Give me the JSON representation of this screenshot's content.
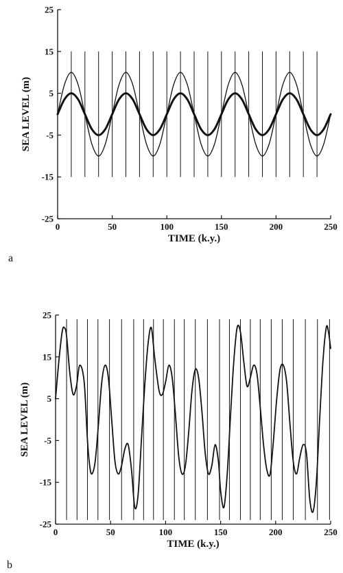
{
  "chart_data": [
    {
      "type": "line",
      "panel_label": "a",
      "xlabel": "TIME (k.y.)",
      "ylabel": "SEA LEVEL (m)",
      "xlim": [
        0,
        250
      ],
      "ylim": [
        -25,
        25
      ],
      "xticks": [
        0,
        50,
        100,
        150,
        200,
        250
      ],
      "yticks": [
        25,
        15,
        5,
        -5,
        -15,
        -25
      ],
      "grid": false,
      "series": [
        {
          "style": "thin",
          "x": [
            0,
            6.25,
            12.5,
            18.75,
            25,
            31.25,
            37.5,
            43.75,
            50,
            56.25,
            62.5,
            68.75,
            75,
            81.25,
            87.5,
            93.75,
            100,
            106.25,
            112.5,
            118.75,
            125,
            131.25,
            137.5,
            143.75,
            150,
            156.25,
            162.5,
            168.75,
            175,
            181.25,
            187.5,
            193.75,
            200,
            206.25,
            212.5,
            218.75,
            225,
            231.25,
            237.5,
            243.75,
            250
          ],
          "y": [
            0,
            7.07,
            10,
            7.07,
            0,
            -7.07,
            -10,
            -7.07,
            0,
            7.07,
            10,
            7.07,
            0,
            -7.07,
            -10,
            -7.07,
            0,
            7.07,
            10,
            7.07,
            0,
            -7.07,
            -10,
            -7.07,
            0,
            7.07,
            10,
            7.07,
            0,
            -7.07,
            -10,
            -7.07,
            0,
            7.07,
            10,
            7.07,
            0,
            -7.07,
            -10,
            -7.07,
            0
          ]
        },
        {
          "style": "thick",
          "x": [
            0,
            6.25,
            12.5,
            18.75,
            25,
            31.25,
            37.5,
            43.75,
            50,
            56.25,
            62.5,
            68.75,
            75,
            81.25,
            87.5,
            93.75,
            100,
            106.25,
            112.5,
            118.75,
            125,
            131.25,
            137.5,
            143.75,
            150,
            156.25,
            162.5,
            168.75,
            175,
            181.25,
            187.5,
            193.75,
            200,
            206.25,
            212.5,
            218.75,
            225,
            231.25,
            237.5,
            243.75,
            250
          ],
          "y": [
            0,
            3.54,
            5,
            3.54,
            0,
            -3.54,
            -5,
            -3.54,
            0,
            3.54,
            5,
            3.54,
            0,
            -3.54,
            -5,
            -3.54,
            0,
            3.54,
            5,
            3.54,
            0,
            -3.54,
            -5,
            -3.54,
            0,
            3.54,
            5,
            3.54,
            0,
            -3.54,
            -5,
            -3.54,
            0,
            3.54,
            5,
            3.54,
            0,
            -3.54,
            -5,
            -3.54,
            0
          ]
        }
      ],
      "vertical_lines": {
        "x": [
          12.5,
          25,
          37.5,
          50,
          62.5,
          75,
          87.5,
          100,
          112.5,
          125,
          137.5,
          150,
          162.5,
          175,
          187.5,
          200,
          212.5,
          225,
          237.5
        ],
        "y_range": [
          -15,
          15
        ]
      }
    },
    {
      "type": "line",
      "panel_label": "b",
      "xlabel": "TIME  (k.y.)",
      "ylabel": "SEA LEVEL (m)",
      "xlim": [
        0,
        250
      ],
      "ylim": [
        -25,
        25
      ],
      "xticks": [
        0,
        50,
        100,
        150,
        200,
        250
      ],
      "yticks": [
        25,
        15,
        5,
        -5,
        -15,
        -25
      ],
      "grid": false,
      "series": [
        {
          "style": "medium",
          "x": [
            0,
            3,
            6,
            8,
            10,
            13,
            16,
            19,
            22,
            26,
            29,
            31,
            33,
            36,
            39,
            42,
            45,
            48,
            51,
            54,
            57,
            60,
            63,
            66,
            69,
            72,
            75,
            78,
            81,
            84,
            87,
            90,
            94,
            97,
            100,
            103,
            106,
            109,
            112,
            115,
            118,
            121,
            124,
            127,
            130,
            133,
            136,
            139,
            142,
            145,
            148,
            150,
            153,
            156,
            159,
            162,
            165,
            168,
            171,
            174,
            177,
            180,
            183,
            186,
            189,
            192,
            195,
            198,
            201,
            204,
            207,
            210,
            213,
            216,
            219,
            222,
            225,
            228,
            231,
            234,
            237,
            240,
            243,
            246,
            248,
            250
          ],
          "y": [
            5,
            14,
            21,
            22,
            20,
            11,
            6,
            8,
            13,
            9,
            -5,
            -11,
            -13,
            -10,
            -1,
            9,
            13,
            10,
            0,
            -10,
            -13,
            -11,
            -7,
            -6,
            -12,
            -21,
            -18,
            -5,
            8,
            18,
            22,
            15,
            7,
            6,
            9,
            13,
            10,
            1,
            -9,
            -13,
            -11,
            -3,
            7,
            12,
            10,
            2,
            -8,
            -13,
            -11,
            -6,
            -10,
            -17,
            -21,
            -13,
            1,
            14,
            22,
            21,
            14,
            8,
            10,
            13,
            11,
            3,
            -6,
            -12,
            -13,
            -5,
            5,
            12,
            13,
            9,
            -1,
            -10,
            -13,
            -9,
            -6,
            -8,
            -19,
            -22,
            -15,
            0,
            14,
            22,
            21,
            17
          ]
        }
      ],
      "vertical_lines": {
        "x": [
          10,
          19.5,
          29,
          38.5,
          49,
          60,
          71,
          80,
          89,
          98,
          108,
          117,
          127,
          138,
          149,
          158,
          168,
          177,
          186,
          196,
          206,
          216,
          227,
          238,
          249
        ],
        "y_range": [
          -24,
          24
        ]
      }
    }
  ]
}
